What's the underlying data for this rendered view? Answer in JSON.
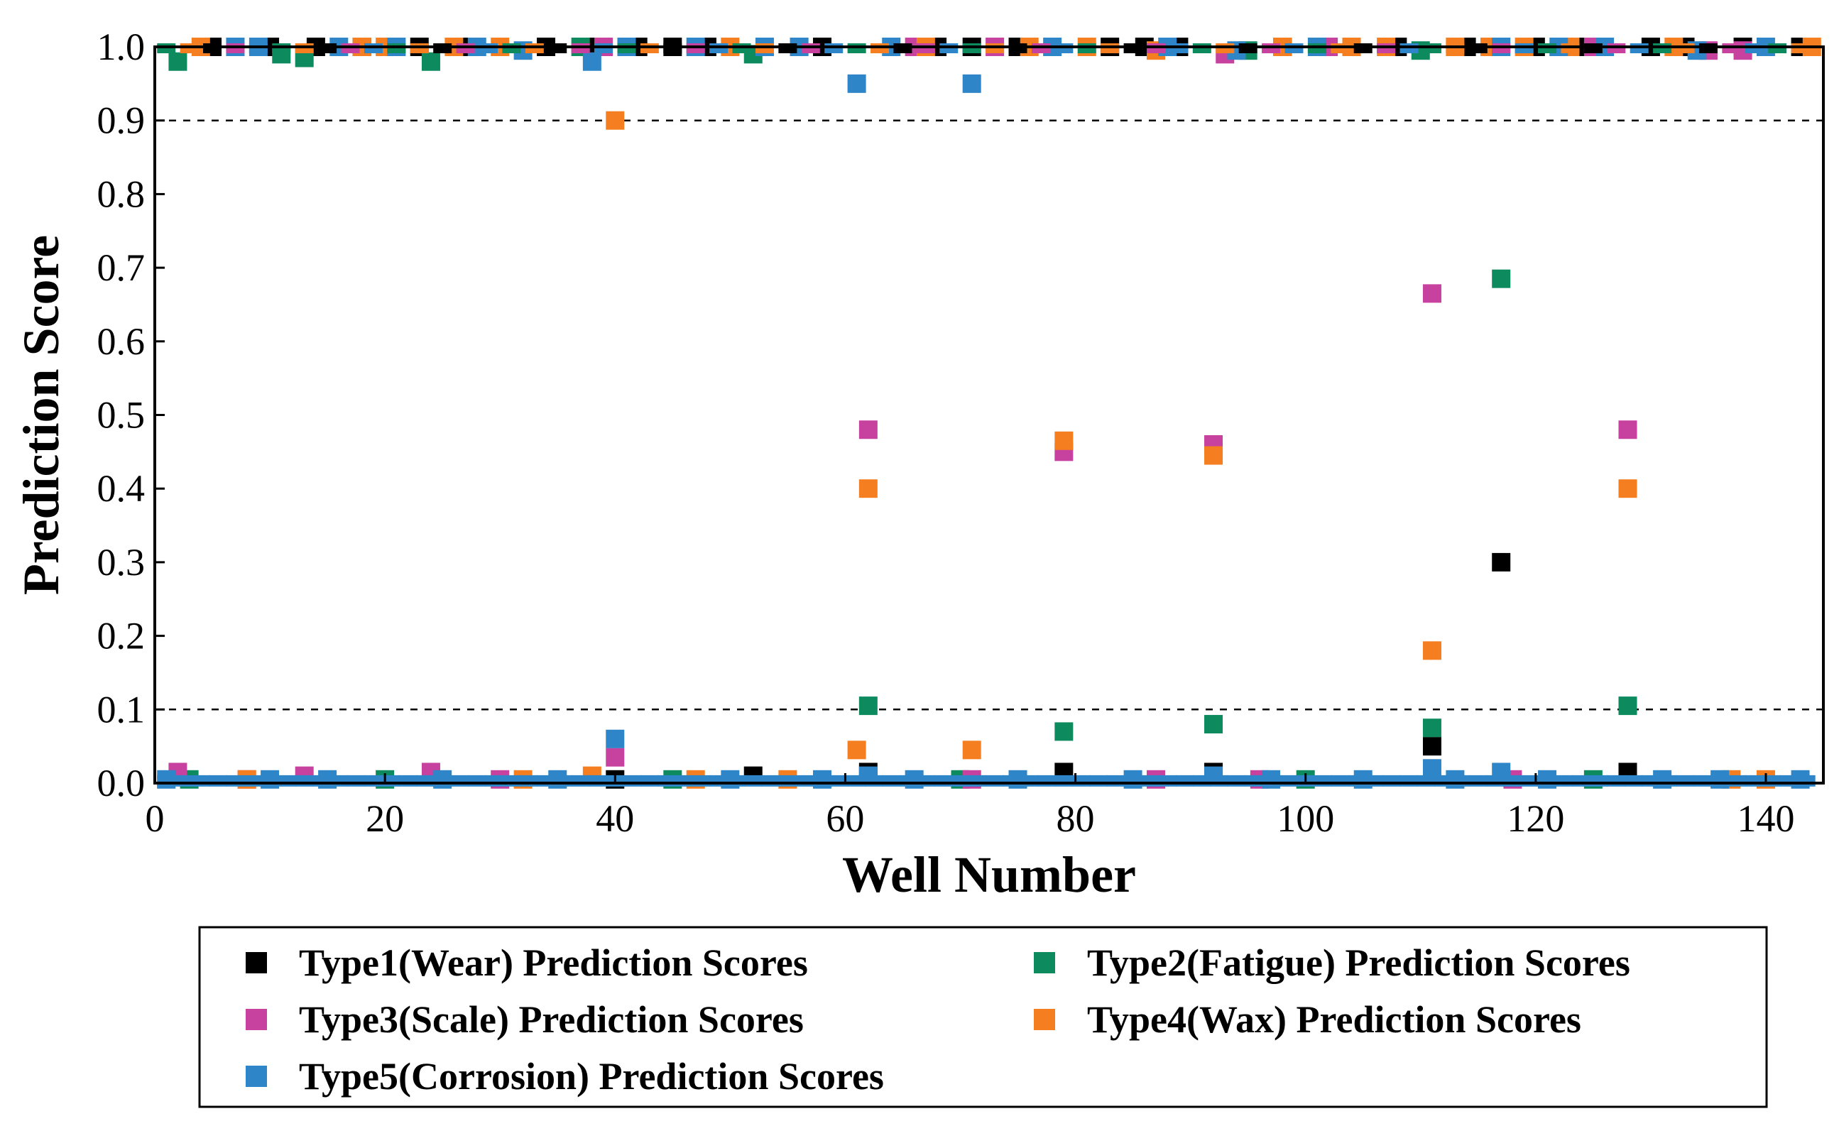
{
  "chart_data": {
    "type": "scatter",
    "title": "",
    "xlabel": "Well Number",
    "ylabel": "Prediction Score",
    "xlim": [
      0,
      145
    ],
    "ylim": [
      0,
      1.0
    ],
    "x_ticks": [
      0,
      20,
      40,
      60,
      80,
      100,
      120,
      140
    ],
    "y_ticks": [
      0.0,
      0.1,
      0.2,
      0.3,
      0.4,
      0.5,
      0.6,
      0.7,
      0.8,
      0.9,
      1.0
    ],
    "x_tick_labels": [
      "0",
      "20",
      "40",
      "60",
      "80",
      "100",
      "120",
      "140"
    ],
    "y_tick_labels": [
      "0.0",
      "0.1",
      "0.2",
      "0.3",
      "0.4",
      "0.5",
      "0.6",
      "0.7",
      "0.8",
      "0.9",
      "1.0"
    ],
    "thresholds": [
      0.9,
      0.1
    ],
    "legend_position": "bottom",
    "series": [
      {
        "name": "Type1(Wear) Prediction Scores",
        "color": "#000000",
        "points": [
          [
            5,
            1.0
          ],
          [
            10,
            1.0
          ],
          [
            14,
            1.0
          ],
          [
            18,
            1.0
          ],
          [
            23,
            1.0
          ],
          [
            27,
            1.0
          ],
          [
            34,
            1.0
          ],
          [
            38,
            1.0
          ],
          [
            40,
            0.005
          ],
          [
            42,
            1.0
          ],
          [
            45,
            1.0
          ],
          [
            48,
            1.0
          ],
          [
            52,
            0.01
          ],
          [
            58,
            1.0
          ],
          [
            62,
            0.015
          ],
          [
            68,
            1.0
          ],
          [
            71,
            1.0
          ],
          [
            75,
            1.0
          ],
          [
            79,
            0.015
          ],
          [
            83,
            1.0
          ],
          [
            86,
            1.0
          ],
          [
            89,
            1.0
          ],
          [
            92,
            0.015
          ],
          [
            98,
            1.0
          ],
          [
            104,
            1.0
          ],
          [
            108,
            1.0
          ],
          [
            111,
            0.05
          ],
          [
            114,
            1.0
          ],
          [
            117,
            0.3
          ],
          [
            120,
            1.0
          ],
          [
            124,
            1.0
          ],
          [
            128,
            0.015
          ],
          [
            130,
            1.0
          ],
          [
            133,
            1.0
          ],
          [
            138,
            1.0
          ],
          [
            143,
            1.0
          ]
        ]
      },
      {
        "name": "Type2(Fatigue) Prediction Scores",
        "color": "#0e8a5f",
        "points": [
          [
            2,
            0.98
          ],
          [
            11,
            0.99
          ],
          [
            13,
            0.985
          ],
          [
            24,
            0.98
          ],
          [
            37,
            1.0
          ],
          [
            52,
            0.99
          ],
          [
            62,
            0.105
          ],
          [
            79,
            0.07
          ],
          [
            92,
            0.08
          ],
          [
            95,
            0.995
          ],
          [
            110,
            0.995
          ],
          [
            111,
            0.075
          ],
          [
            117,
            0.685
          ],
          [
            128,
            0.105
          ],
          [
            3,
            0.005
          ],
          [
            20,
            0.005
          ],
          [
            45,
            0.005
          ],
          [
            70,
            0.005
          ],
          [
            100,
            0.005
          ],
          [
            125,
            0.005
          ]
        ]
      },
      {
        "name": "Type3(Scale) Prediction Scores",
        "color": "#c7419e",
        "points": [
          [
            2,
            0.015
          ],
          [
            13,
            0.01
          ],
          [
            24,
            0.015
          ],
          [
            39,
            1.0
          ],
          [
            40,
            0.035
          ],
          [
            56,
            1.0
          ],
          [
            62,
            0.48
          ],
          [
            66,
            1.0
          ],
          [
            71,
            0.005
          ],
          [
            73,
            1.0
          ],
          [
            79,
            0.45
          ],
          [
            87,
            0.005
          ],
          [
            92,
            0.46
          ],
          [
            93,
            0.99
          ],
          [
            102,
            1.0
          ],
          [
            111,
            0.665
          ],
          [
            125,
            1.0
          ],
          [
            128,
            0.48
          ],
          [
            135,
            0.995
          ],
          [
            138,
            0.995
          ],
          [
            8,
            0.005
          ],
          [
            30,
            0.005
          ],
          [
            96,
            0.005
          ],
          [
            118,
            0.005
          ]
        ]
      },
      {
        "name": "Type4(Wax) Prediction Scores",
        "color": "#f57f20",
        "points": [
          [
            4,
            1.0
          ],
          [
            8,
            0.005
          ],
          [
            18,
            1.0
          ],
          [
            20,
            1.0
          ],
          [
            26,
            1.0
          ],
          [
            30,
            1.0
          ],
          [
            32,
            0.005
          ],
          [
            38,
            0.01
          ],
          [
            40,
            0.9
          ],
          [
            47,
            0.005
          ],
          [
            50,
            1.0
          ],
          [
            55,
            0.005
          ],
          [
            61,
            0.045
          ],
          [
            62,
            0.4
          ],
          [
            67,
            1.0
          ],
          [
            71,
            0.045
          ],
          [
            76,
            1.0
          ],
          [
            79,
            0.465
          ],
          [
            81,
            1.0
          ],
          [
            87,
            0.995
          ],
          [
            92,
            0.445
          ],
          [
            98,
            1.0
          ],
          [
            104,
            1.0
          ],
          [
            107,
            1.0
          ],
          [
            111,
            0.18
          ],
          [
            113,
            1.0
          ],
          [
            116,
            1.0
          ],
          [
            119,
            1.0
          ],
          [
            123,
            1.0
          ],
          [
            128,
            0.4
          ],
          [
            132,
            1.0
          ],
          [
            137,
            0.005
          ],
          [
            140,
            0.005
          ],
          [
            144,
            1.0
          ]
        ]
      },
      {
        "name": "Type5(Corrosion) Prediction Scores",
        "color": "#2e86c8",
        "points": [
          [
            1,
            0.005
          ],
          [
            7,
            1.0
          ],
          [
            9,
            1.0
          ],
          [
            16,
            1.0
          ],
          [
            21,
            1.0
          ],
          [
            28,
            1.0
          ],
          [
            32,
            0.995
          ],
          [
            38,
            0.98
          ],
          [
            40,
            0.06
          ],
          [
            41,
            1.0
          ],
          [
            47,
            1.0
          ],
          [
            53,
            1.0
          ],
          [
            56,
            1.0
          ],
          [
            61,
            0.95
          ],
          [
            62,
            0.01
          ],
          [
            64,
            1.0
          ],
          [
            71,
            0.95
          ],
          [
            78,
            1.0
          ],
          [
            88,
            1.0
          ],
          [
            92,
            0.01
          ],
          [
            94,
            0.995
          ],
          [
            101,
            1.0
          ],
          [
            111,
            0.02
          ],
          [
            117,
            1.0
          ],
          [
            117,
            0.015
          ],
          [
            122,
            1.0
          ],
          [
            126,
            1.0
          ],
          [
            134,
            0.995
          ],
          [
            140,
            1.0
          ],
          [
            143,
            0.005
          ],
          [
            10,
            0.005
          ],
          [
            15,
            0.005
          ],
          [
            25,
            0.005
          ],
          [
            35,
            0.005
          ],
          [
            50,
            0.005
          ],
          [
            58,
            0.005
          ],
          [
            66,
            0.005
          ],
          [
            75,
            0.005
          ],
          [
            85,
            0.005
          ],
          [
            97,
            0.005
          ],
          [
            105,
            0.005
          ],
          [
            113,
            0.005
          ],
          [
            121,
            0.005
          ],
          [
            131,
            0.005
          ],
          [
            136,
            0.005
          ]
        ]
      }
    ]
  }
}
